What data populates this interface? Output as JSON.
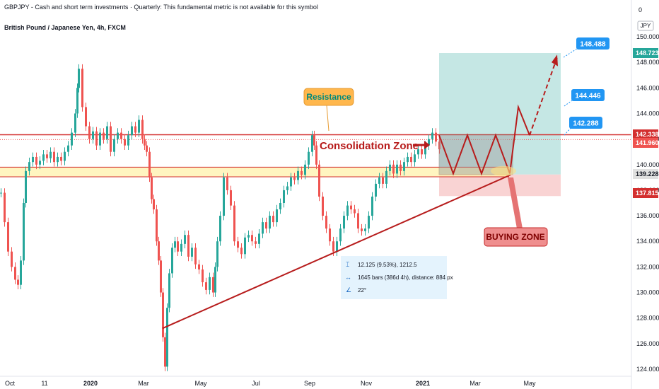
{
  "header": {
    "line1": "GBPJPY - Cash and short term investments · Quarterly: This fundamental metric is not available for this symbol",
    "line2": "British Pound / Japanese Yen, 4h, FXCM",
    "indicator_value": "0"
  },
  "chart_data": {
    "type": "line",
    "title": "British Pound / Japanese Yen, 4h, FXCM",
    "currency_label": "JPY",
    "ylim": [
      123.5,
      151
    ],
    "y_ticks": [
      "150.000",
      "148.000",
      "146.000",
      "144.000",
      "142.000",
      "140.000",
      "138.000",
      "136.000",
      "134.000",
      "132.000",
      "130.000",
      "128.000",
      "126.000",
      "124.000"
    ],
    "x_ticks": [
      "Oct",
      "11",
      "2020",
      "Mar",
      "May",
      "Jul",
      "Sep",
      "Nov",
      "2021",
      "Mar",
      "May"
    ],
    "series": [
      {
        "x": [
          0,
          5,
          10,
          15,
          20,
          24,
          28,
          32,
          35,
          40,
          45,
          50,
          55,
          60,
          65,
          70,
          75,
          80,
          85,
          90,
          95,
          100,
          105,
          108,
          110,
          115,
          120,
          125,
          130,
          135,
          140,
          145,
          150,
          155,
          160,
          165,
          170,
          175,
          180,
          185,
          190,
          195,
          200,
          203,
          206,
          210,
          213,
          216,
          220,
          223,
          226,
          229,
          232,
          235,
          238,
          242,
          246,
          250,
          255,
          260,
          265,
          270,
          275,
          280,
          285,
          290,
          295,
          300,
          303,
          306,
          310,
          315,
          320,
          325,
          330,
          335,
          340,
          345,
          350,
          355,
          360,
          365,
          370,
          375,
          380,
          385,
          390,
          395,
          400,
          405,
          410,
          415,
          420,
          425,
          430,
          435,
          440,
          443,
          446,
          450,
          455,
          460,
          465,
          470,
          475,
          480,
          485,
          490,
          495,
          500,
          505,
          510,
          515,
          520,
          525,
          530,
          535,
          540,
          545,
          550,
          555,
          560,
          565,
          570,
          575,
          580,
          585,
          590,
          595,
          600,
          605,
          610,
          615,
          620
        ],
        "values": [
          137.8,
          135.5,
          133.2,
          132.0,
          131.0,
          130.6,
          132.5,
          137.0,
          139.5,
          140.2,
          140.6,
          140.0,
          140.3,
          140.8,
          140.5,
          141.0,
          140.2,
          140.6,
          140.3,
          141.0,
          141.5,
          142.5,
          144.0,
          146.0,
          147.5,
          144.5,
          143.0,
          142.0,
          142.6,
          141.5,
          142.5,
          142.0,
          143.0,
          141.0,
          142.0,
          142.5,
          142.0,
          141.5,
          142.3,
          143.0,
          142.5,
          143.5,
          142.0,
          141.5,
          141.0,
          139.0,
          137.3,
          136.5,
          134.0,
          132.5,
          130.0,
          126.5,
          124.2,
          128.8,
          131.5,
          133.5,
          134.0,
          133.2,
          133.8,
          134.5,
          132.8,
          133.5,
          132.2,
          131.8,
          130.8,
          130.2,
          131.2,
          130.0,
          132.0,
          134.0,
          136.0,
          139.0,
          138.0,
          136.8,
          134.0,
          133.5,
          133.0,
          134.3,
          134.5,
          134.0,
          133.8,
          134.6,
          135.5,
          135.0,
          136.0,
          135.5,
          136.5,
          137.0,
          138.0,
          138.3,
          139.0,
          138.8,
          139.5,
          139.2,
          140.0,
          141.0,
          142.3,
          141.5,
          140.0,
          137.5,
          136.0,
          135.0,
          134.0,
          133.2,
          134.0,
          135.0,
          136.0,
          136.8,
          136.5,
          136.2,
          135.0,
          134.8,
          135.0,
          136.0,
          137.5,
          138.5,
          139.0,
          138.5,
          139.5,
          140.0,
          139.3,
          140.0,
          139.5,
          140.2,
          140.6,
          140.2,
          140.8,
          141.2,
          140.8,
          141.5,
          142.0,
          142.5,
          141.8,
          141.2
        ]
      }
    ],
    "levels": {
      "resistance_top": 142.338,
      "resistance_bottom": 141.96,
      "support": 139.228,
      "stop": 137.815
    },
    "price_tags": {
      "last_red": "142.338",
      "second": "141.960",
      "support": "139.228",
      "stop": "137.815",
      "target_green": "148.723"
    },
    "targets": [
      "148.488",
      "144.446",
      "142.288"
    ],
    "annotations": {
      "resistance": "Resistance",
      "consolidation": "Consolidation Zone",
      "buying_zone": "BUYING ZONE"
    },
    "measure": {
      "line1": "12.125 (9.53%), 1212.5",
      "line2": "1645 bars (386d 4h), distance: 884 px",
      "line3": "22°"
    },
    "colors": {
      "up": "#26a69a",
      "down": "#ef5350",
      "accent_red": "#b71c1c",
      "target_blue": "#2196f3",
      "orange_callout": "#ffb74d",
      "profit_zone": "#b2dfdb",
      "loss_zone": "#f8c8c8"
    }
  }
}
